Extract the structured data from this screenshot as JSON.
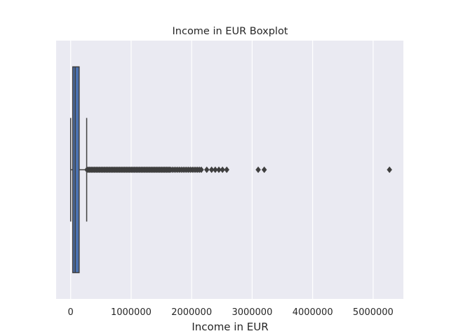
{
  "chart_data": {
    "type": "boxplot",
    "title": "Income in EUR Boxplot",
    "xlabel": "Income in EUR",
    "ylabel": "",
    "orientation": "horizontal",
    "xlim": [
      -240000,
      5500000
    ],
    "xticks": [
      0,
      1000000,
      2000000,
      3000000,
      4000000,
      5000000
    ],
    "xtick_labels": [
      "0",
      "1000000",
      "2000000",
      "3000000",
      "4000000",
      "5000000"
    ],
    "grid": true,
    "background": "#eaeaf2",
    "box_color": "#4c72b0",
    "line_color": "#3f3f3f",
    "box": {
      "whisker_low": 0,
      "q1": 35000,
      "median": 75000,
      "q3": 140000,
      "whisker_high": 265000
    },
    "outliers": [
      270000,
      290000,
      310000,
      330000,
      350000,
      370000,
      390000,
      410000,
      430000,
      450000,
      470000,
      490000,
      510000,
      530000,
      550000,
      570000,
      590000,
      610000,
      630000,
      650000,
      670000,
      690000,
      710000,
      730000,
      750000,
      770000,
      790000,
      810000,
      830000,
      850000,
      870000,
      890000,
      910000,
      930000,
      950000,
      970000,
      990000,
      1010000,
      1030000,
      1050000,
      1070000,
      1090000,
      1110000,
      1130000,
      1150000,
      1170000,
      1190000,
      1210000,
      1230000,
      1250000,
      1270000,
      1290000,
      1310000,
      1330000,
      1350000,
      1370000,
      1390000,
      1410000,
      1430000,
      1450000,
      1470000,
      1490000,
      1510000,
      1530000,
      1550000,
      1570000,
      1590000,
      1610000,
      1630000,
      1650000,
      1680000,
      1710000,
      1740000,
      1770000,
      1800000,
      1830000,
      1860000,
      1890000,
      1920000,
      1950000,
      1980000,
      2010000,
      2040000,
      2070000,
      2100000,
      2130000,
      2160000,
      2250000,
      2330000,
      2390000,
      2450000,
      2510000,
      2580000,
      3100000,
      3200000,
      5270000
    ]
  }
}
